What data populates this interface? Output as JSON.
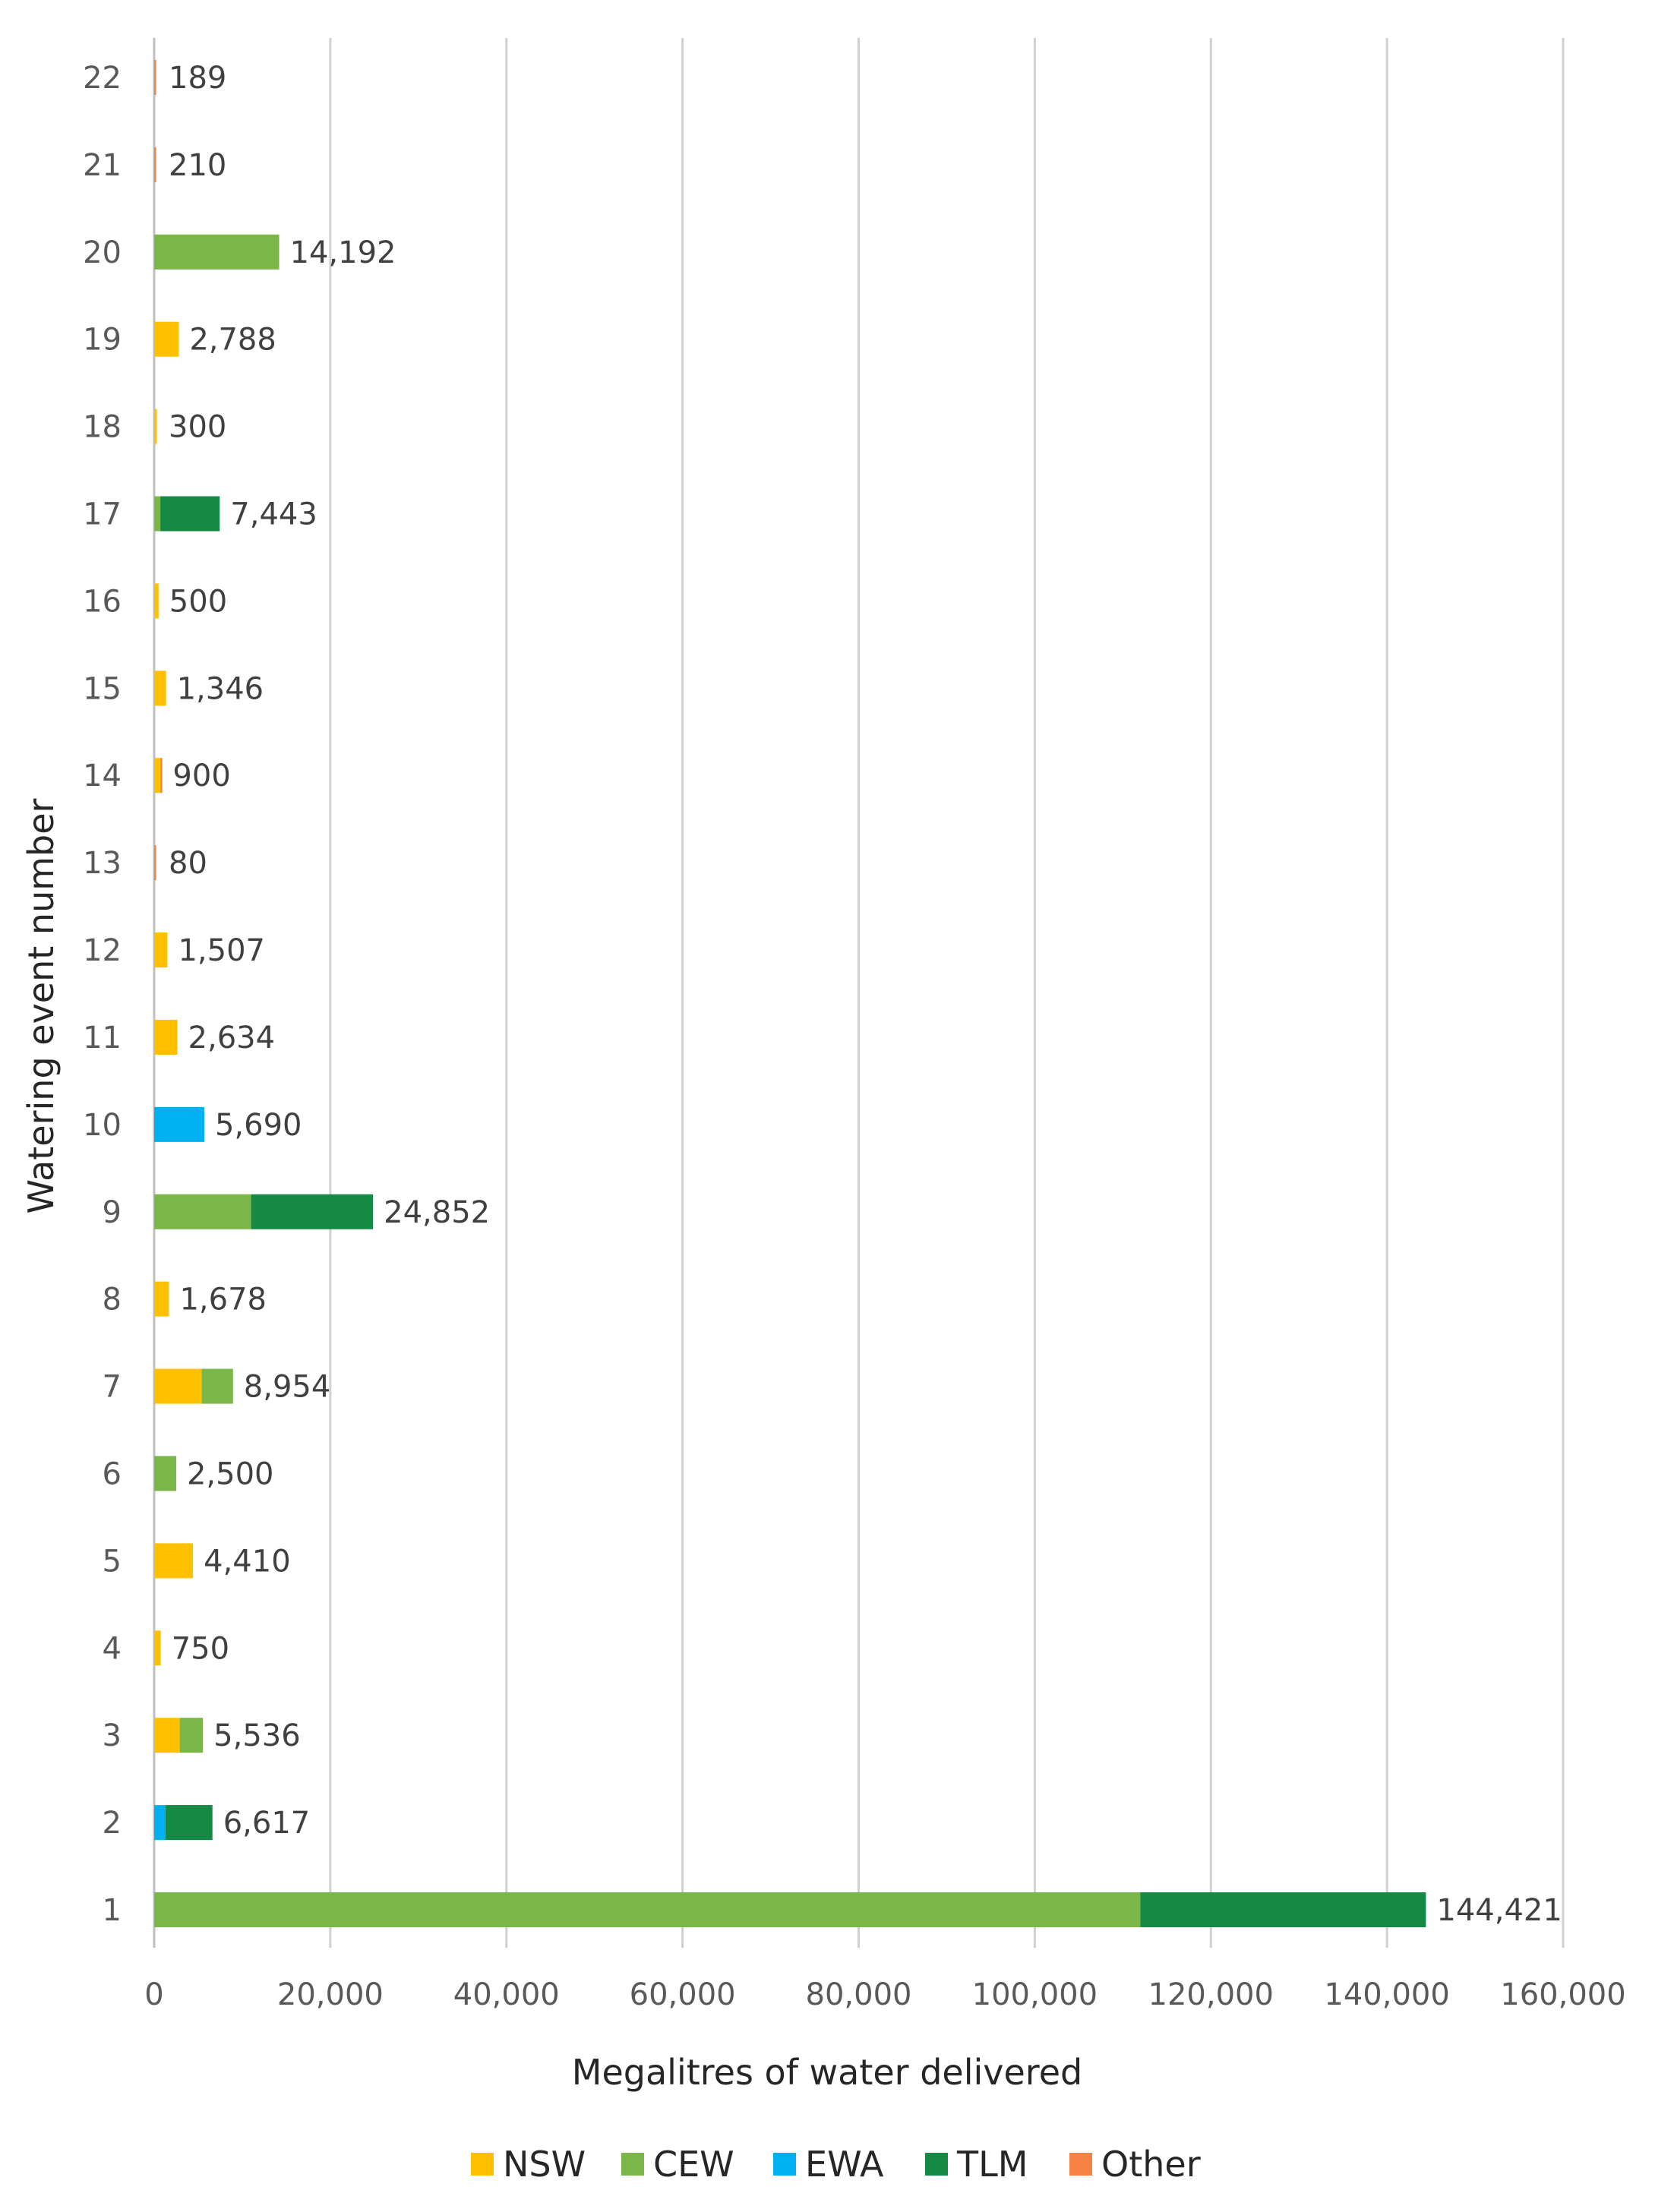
{
  "chart_data": {
    "type": "bar",
    "orientation": "horizontal",
    "stacked": true,
    "categories": [
      "1",
      "2",
      "3",
      "4",
      "5",
      "6",
      "7",
      "8",
      "9",
      "10",
      "11",
      "12",
      "13",
      "14",
      "15",
      "16",
      "17",
      "18",
      "19",
      "20",
      "21",
      "22"
    ],
    "series": [
      {
        "name": "NSW",
        "color": "#FFC000",
        "values": [
          0,
          0,
          2900,
          750,
          4410,
          0,
          5400,
          1678,
          0,
          0,
          2634,
          1507,
          0,
          700,
          1346,
          500,
          0,
          300,
          2788,
          0,
          0,
          0
        ]
      },
      {
        "name": "CEW",
        "color": "#7AB648",
        "values": [
          112000,
          0,
          2636,
          0,
          0,
          2500,
          3554,
          0,
          11000,
          0,
          0,
          0,
          0,
          0,
          0,
          0,
          700,
          0,
          0,
          14192,
          0,
          0
        ]
      },
      {
        "name": "EWA",
        "color": "#00B0F0",
        "values": [
          0,
          1300,
          0,
          0,
          0,
          0,
          0,
          0,
          0,
          5690,
          0,
          0,
          0,
          0,
          0,
          0,
          0,
          0,
          0,
          0,
          0,
          0
        ]
      },
      {
        "name": "TLM",
        "color": "#158A45",
        "values": [
          32421,
          5317,
          0,
          0,
          0,
          0,
          0,
          0,
          13852,
          0,
          0,
          0,
          0,
          0,
          0,
          0,
          6743,
          0,
          0,
          0,
          0,
          0
        ]
      },
      {
        "name": "Other",
        "color": "#F58142",
        "values": [
          0,
          0,
          0,
          0,
          0,
          0,
          0,
          0,
          0,
          0,
          0,
          0,
          80,
          200,
          0,
          0,
          0,
          0,
          0,
          0,
          210,
          189
        ]
      }
    ],
    "totals": [
      "144,421",
      "6,617",
      "5,536",
      "750",
      "4,410",
      "2,500",
      "8,954",
      "1,678",
      "24,852",
      "5,690",
      "2,634",
      "1,507",
      "80",
      "900",
      "1,346",
      "500",
      "7,443",
      "300",
      "2,788",
      "14,192",
      "210",
      "189"
    ],
    "totals_values": [
      144421,
      6617,
      5536,
      750,
      4410,
      2500,
      8954,
      1678,
      24852,
      5690,
      2634,
      1507,
      80,
      900,
      1346,
      500,
      7443,
      300,
      2788,
      14192,
      210,
      189
    ],
    "xticks": [
      0,
      20000,
      40000,
      60000,
      80000,
      100000,
      120000,
      140000,
      160000
    ],
    "xtick_labels": [
      "0",
      "20,000",
      "40,000",
      "60,000",
      "80,000",
      "100,000",
      "120,000",
      "140,000",
      "160,000"
    ],
    "xlim": [
      0,
      160000
    ],
    "xlabel": "Megalitres of water delivered",
    "ylabel": "Watering event number",
    "grid": "vertical",
    "legend_position": "bottom"
  }
}
